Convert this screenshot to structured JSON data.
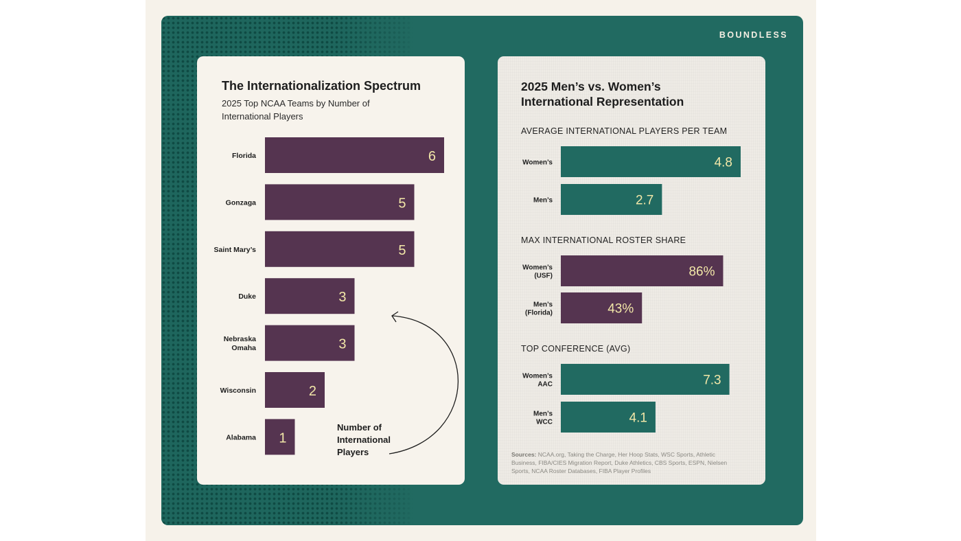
{
  "brand": "BOUNDLESS",
  "colors": {
    "plum": "#553450",
    "teal": "#216a61",
    "value_text": "#f2e7a8",
    "frame": "#216a61"
  },
  "left_panel": {
    "title": "The Internationalization Spectrum",
    "subtitle": "2025 Top NCAA Teams by Number of International Players",
    "callout": "Number of International Players"
  },
  "right_panel": {
    "title": "2025 Men’s vs. Women’s International Representation",
    "sources_label": "Sources:",
    "sources_text": "NCAA.org, Taking the Charge, Her Hoop Stats, WSC Sports, Athletic Business, FIBA/CIES Migration Report, Duke Athletics, CBS Sports, ESPN, Nielsen Sports, NCAA Roster Databases, FIBA Player Profiles"
  },
  "chart_data": [
    {
      "type": "bar",
      "orientation": "horizontal",
      "title": "The Internationalization Spectrum",
      "subtitle": "2025 Top NCAA Teams by Number of International Players",
      "categories": [
        "Florida",
        "Gonzaga",
        "Saint Mary’s",
        "Duke",
        "Nebraska Omaha",
        "Wisconsin",
        "Alabama"
      ],
      "category_lines": [
        [
          "Florida"
        ],
        [
          "Gonzaga"
        ],
        [
          "Saint Mary’s"
        ],
        [
          "Duke"
        ],
        [
          "Nebraska",
          "Omaha"
        ],
        [
          "Wisconsin"
        ],
        [
          "Alabama"
        ]
      ],
      "values": [
        6,
        5,
        5,
        3,
        3,
        2,
        1
      ],
      "labels": [
        "6",
        "5",
        "5",
        "3",
        "3",
        "2",
        "1"
      ],
      "color": "#553450",
      "xlim": [
        0,
        6
      ],
      "annotation": "Number of International Players"
    },
    {
      "type": "bar",
      "orientation": "horizontal",
      "title": "AVERAGE INTERNATIONAL PLAYERS PER TEAM",
      "categories": [
        "Women’s",
        "Men’s"
      ],
      "category_lines": [
        [
          "Women’s"
        ],
        [
          "Men’s"
        ]
      ],
      "values": [
        4.8,
        2.7
      ],
      "labels": [
        "4.8",
        "2.7"
      ],
      "color": "#216a61",
      "xlim": [
        0,
        4.8
      ]
    },
    {
      "type": "bar",
      "orientation": "horizontal",
      "title": "MAX INTERNATIONAL ROSTER SHARE",
      "categories": [
        "Women’s (USF)",
        "Men’s (Florida)"
      ],
      "category_lines": [
        [
          "Women’s",
          "(USF)"
        ],
        [
          "Men’s",
          "(Florida)"
        ]
      ],
      "values": [
        86,
        43
      ],
      "labels": [
        "86%",
        "43%"
      ],
      "color": "#553450",
      "xlim": [
        0,
        100
      ]
    },
    {
      "type": "bar",
      "orientation": "horizontal",
      "title": "TOP CONFERENCE (AVG)",
      "categories": [
        "Women’s AAC",
        "Men’s WCC"
      ],
      "category_lines": [
        [
          "Women’s",
          "AAC"
        ],
        [
          "Men’s",
          "WCC"
        ]
      ],
      "values": [
        7.3,
        4.1
      ],
      "labels": [
        "7.3",
        "4.1"
      ],
      "color": "#216a61",
      "xlim": [
        0,
        8.5
      ]
    }
  ]
}
